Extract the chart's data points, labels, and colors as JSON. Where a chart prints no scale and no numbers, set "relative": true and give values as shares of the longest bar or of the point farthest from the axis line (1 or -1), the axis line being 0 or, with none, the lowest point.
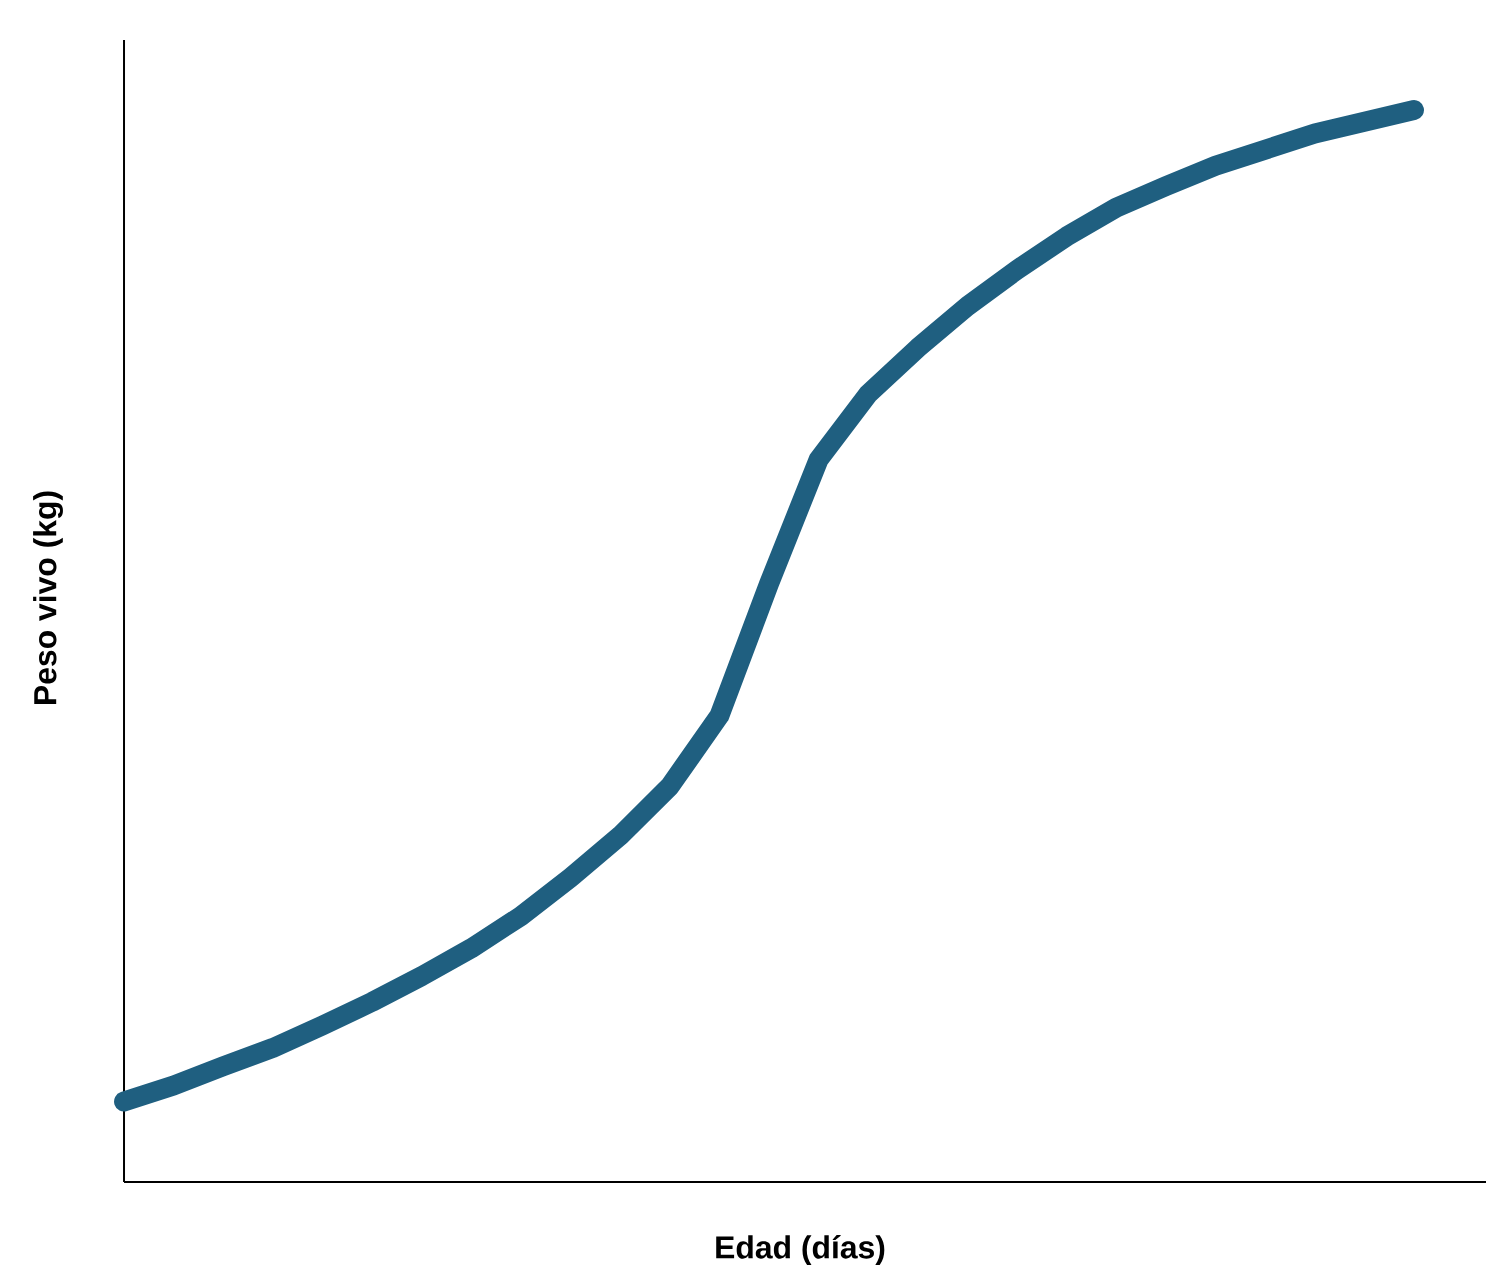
{
  "chart_data": {
    "type": "line",
    "relative": true,
    "xlabel": "Edad (días)",
    "ylabel": "Peso vivo (kg)",
    "categories": [
      null,
      null,
      null,
      null,
      null,
      null,
      null,
      null,
      null,
      null,
      null,
      null,
      null,
      null,
      null,
      null,
      null,
      null,
      null,
      null,
      null,
      null,
      null,
      null,
      null,
      null,
      null
    ],
    "series": [
      {
        "color": "#1f5f80",
        "values": [
          0.075,
          0.09,
          0.108,
          0.125,
          0.146,
          0.168,
          0.192,
          0.218,
          0.248,
          0.284,
          0.323,
          0.369,
          0.435,
          0.558,
          0.674,
          0.735,
          0.778,
          0.817,
          0.851,
          0.882,
          0.909,
          0.929,
          0.948,
          0.963,
          0.978,
          0.989,
          1.0
        ]
      }
    ]
  }
}
